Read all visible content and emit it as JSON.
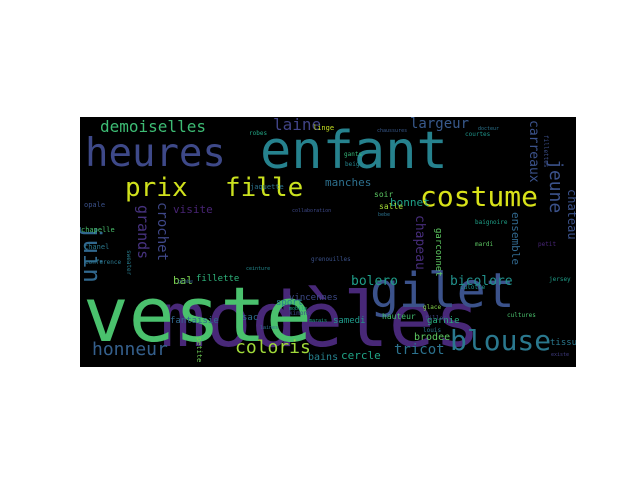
{
  "words": [
    {
      "text": "modèles",
      "color": "#482878"
    },
    {
      "text": "veste",
      "color": "#4ac16d"
    },
    {
      "text": "enfant",
      "color": "#26828e"
    },
    {
      "text": "gilet",
      "color": "#3b528b"
    },
    {
      "text": "heures",
      "color": "#3e4989"
    },
    {
      "text": "costume",
      "color": "#d8e219"
    },
    {
      "text": "blouse",
      "color": "#2a788e"
    },
    {
      "text": "fille",
      "color": "#cae11f"
    },
    {
      "text": "prix",
      "color": "#d0e11c"
    },
    {
      "text": "juin",
      "color": "#31688e"
    },
    {
      "text": "coloris",
      "color": "#a0da39"
    },
    {
      "text": "honneur",
      "color": "#35608d"
    },
    {
      "text": "demoiselles",
      "color": "#3dbc74"
    },
    {
      "text": "laine",
      "color": "#414487"
    },
    {
      "text": "jeune",
      "color": "#3b528b"
    },
    {
      "text": "largeur",
      "color": "#38598c"
    },
    {
      "text": "tricot",
      "color": "#2c728e"
    },
    {
      "text": "bolero",
      "color": "#1f9e89"
    },
    {
      "text": "bicolore",
      "color": "#21918c"
    },
    {
      "text": "chapeau",
      "color": "#472d7b"
    },
    {
      "text": "manches",
      "color": "#2d708e"
    },
    {
      "text": "bonnet",
      "color": "#1fa187"
    },
    {
      "text": "grands",
      "color": "#46327e"
    },
    {
      "text": "crochet",
      "color": "#3f4889"
    },
    {
      "text": "visite",
      "color": "#482475"
    },
    {
      "text": "bal",
      "color": "#7ad151"
    },
    {
      "text": "fillette",
      "color": "#2fb47c"
    },
    {
      "text": "cercle",
      "color": "#20a486"
    },
    {
      "text": "bains",
      "color": "#26828e"
    },
    {
      "text": "brodee",
      "color": "#5ec962"
    },
    {
      "text": "carreaux",
      "color": "#3b528b"
    },
    {
      "text": "chateau",
      "color": "#3b528b"
    },
    {
      "text": "ensemble",
      "color": "#31688e"
    },
    {
      "text": "tissu",
      "color": "#2a788e"
    },
    {
      "text": "garnie",
      "color": "#29af7f"
    },
    {
      "text": "samedi",
      "color": "#1f9a8a"
    },
    {
      "text": "sport",
      "color": "#287c8e"
    },
    {
      "text": "sac",
      "color": "#2e6e8e"
    },
    {
      "text": "fantaisie",
      "color": "#31688e"
    },
    {
      "text": "vincennes",
      "color": "#3e4a89"
    },
    {
      "text": "hauteur",
      "color": "#44bf70"
    },
    {
      "text": "soir",
      "color": "#5cc863"
    },
    {
      "text": "salle",
      "color": "#a5db36"
    },
    {
      "text": "linge",
      "color": "#c5e021"
    },
    {
      "text": "chanel",
      "color": "#2a788e"
    },
    {
      "text": "opale",
      "color": "#3b528b"
    },
    {
      "text": "chapelle",
      "color": "#4ac16d"
    },
    {
      "text": "jaquette",
      "color": "#2c738e"
    },
    {
      "text": "mardi",
      "color": "#5dc863"
    },
    {
      "text": "kimono",
      "color": "#3e4989"
    },
    {
      "text": "glace",
      "color": "#84d44b"
    },
    {
      "text": "louis",
      "color": "#2a788e"
    },
    {
      "text": "filles",
      "color": "#404688"
    },
    {
      "text": "baignoire",
      "color": "#1fa088"
    },
    {
      "text": "culotte",
      "color": "#1f958b"
    },
    {
      "text": "sweater",
      "color": "#287d8e"
    },
    {
      "text": "robes",
      "color": "#22a785"
    },
    {
      "text": "gants",
      "color": "#35b779"
    },
    {
      "text": "beige",
      "color": "#25858e"
    },
    {
      "text": "courtes",
      "color": "#1f968b"
    },
    {
      "text": "collaboration",
      "color": "#3e4989"
    },
    {
      "text": "existe",
      "color": "#433e85"
    },
    {
      "text": "conference",
      "color": "#2a788e"
    },
    {
      "text": "garconnet",
      "color": "#5ec962"
    },
    {
      "text": "bebe",
      "color": "#2c728e"
    },
    {
      "text": "globe",
      "color": "#35608d"
    },
    {
      "text": "petite",
      "color": "#70cf57"
    },
    {
      "text": "ceinture",
      "color": "#23898e"
    },
    {
      "text": "laines",
      "color": "#2e6f8e"
    },
    {
      "text": "marais",
      "color": "#1fa188"
    },
    {
      "text": "mobile",
      "color": "#1fa188"
    },
    {
      "text": "chaussures",
      "color": "#38598c"
    },
    {
      "text": "docteur",
      "color": "#2b748e"
    },
    {
      "text": "grenouilles",
      "color": "#3b528b"
    },
    {
      "text": "cultures",
      "color": "#4ac16d"
    },
    {
      "text": "jersey",
      "color": "#1f9e89"
    },
    {
      "text": "fillettes",
      "color": "#3c4f8a"
    },
    {
      "text": "petit",
      "color": "#482677"
    }
  ]
}
